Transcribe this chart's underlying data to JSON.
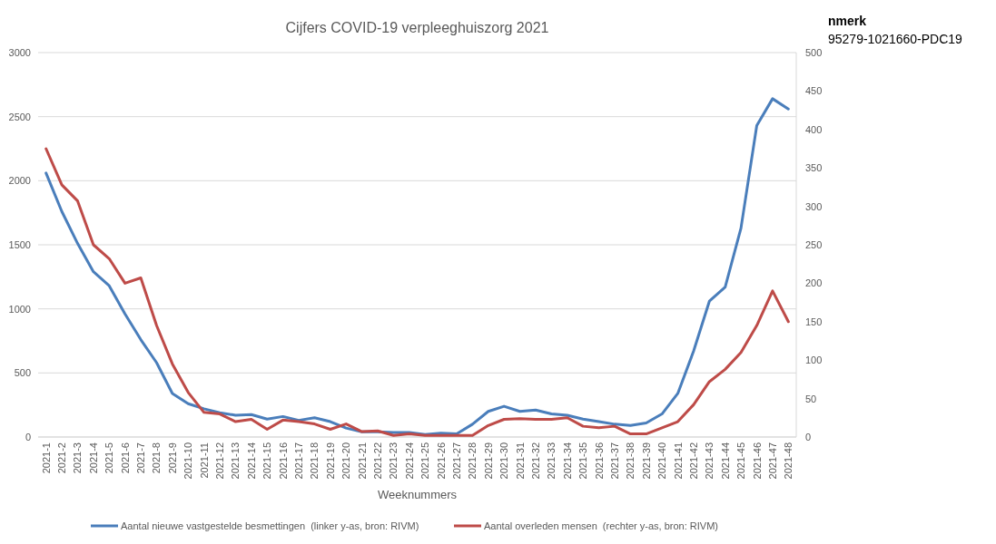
{
  "chart_data": {
    "type": "line",
    "title": "Cijfers COVID-19 verpleeghuiszorg 2021",
    "xlabel": "Weeknummers",
    "categories": [
      "2021-1",
      "2021-2",
      "2021-3",
      "2021-4",
      "2021-5",
      "2021-6",
      "2021-7",
      "2021-8",
      "2021-9",
      "2021-10",
      "2021-11",
      "2021-12",
      "2021-13",
      "2021-14",
      "2021-15",
      "2021-16",
      "2021-17",
      "2021-18",
      "2021-19",
      "2021-20",
      "2021-21",
      "2021-22",
      "2021-23",
      "2021-24",
      "2021-25",
      "2021-26",
      "2021-27",
      "2021-28",
      "2021-29",
      "2021-30",
      "2021-31",
      "2021-32",
      "2021-33",
      "2021-34",
      "2021-35",
      "2021-36",
      "2021-37",
      "2021-38",
      "2021-39",
      "2021-40",
      "2021-41",
      "2021-42",
      "2021-43",
      "2021-44",
      "2021-45",
      "2021-46",
      "2021-47",
      "2021-48"
    ],
    "series": [
      {
        "name": "Aantal nieuwe vastgestelde besmettingen  (linker y-as, bron: RIVM)",
        "color": "#4a7ebb",
        "values": [
          2060,
          1760,
          1510,
          1290,
          1180,
          960,
          760,
          580,
          340,
          260,
          220,
          190,
          170,
          175,
          140,
          160,
          130,
          150,
          120,
          70,
          40,
          40,
          35,
          35,
          20,
          30,
          25,
          100,
          200,
          240,
          200,
          210,
          180,
          170,
          140,
          120,
          100,
          90,
          110,
          180,
          340,
          670,
          1060,
          1170,
          1630,
          2430,
          2640,
          2560
        ]
      },
      {
        "name": "Aantal overleden mensen  (rechter y-as, bron: RIVM)",
        "color": "#be4b48",
        "axis": "y2",
        "values": [
          375,
          328,
          307,
          250,
          232,
          200,
          207,
          145,
          95,
          58,
          32,
          30,
          20,
          23,
          10,
          22,
          20,
          17,
          10,
          17,
          7,
          8,
          2,
          4,
          2,
          2,
          2,
          2,
          15,
          23,
          24,
          23,
          23,
          25,
          14,
          12,
          14,
          4,
          4,
          12,
          20,
          42,
          72,
          88,
          110,
          145,
          190,
          150
        ]
      }
    ],
    "ylim": [
      0,
      3000
    ],
    "yticks": [
      0,
      500,
      1000,
      1500,
      2000,
      2500,
      3000
    ],
    "y2lim": [
      0,
      500
    ],
    "y2ticks": [
      0,
      50,
      100,
      150,
      200,
      250,
      300,
      350,
      400,
      450,
      500
    ],
    "grid": "y",
    "legend": "bottom",
    "annotations": [
      "nmerk",
      "95279-1021660-PDC19"
    ]
  }
}
